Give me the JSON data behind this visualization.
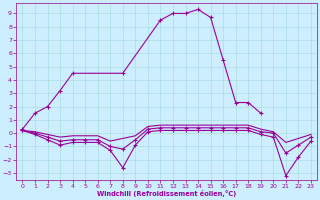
{
  "background_color": "#cceeff",
  "line_color": "#990099",
  "grid_color": "#aadddd",
  "xlabel": "Windchill (Refroidissement éolien,°C)",
  "xlim": [
    -0.5,
    23.5
  ],
  "ylim": [
    -3.5,
    9.8
  ],
  "yticks": [
    -3,
    -2,
    -1,
    0,
    1,
    2,
    3,
    4,
    5,
    6,
    7,
    8,
    9
  ],
  "xticks": [
    0,
    1,
    2,
    3,
    4,
    5,
    6,
    7,
    8,
    9,
    10,
    11,
    12,
    13,
    14,
    15,
    16,
    17,
    18,
    19,
    20,
    21,
    22,
    23
  ],
  "series1_x": [
    0,
    1,
    2,
    3,
    4,
    8,
    11,
    12,
    13,
    14,
    15,
    16,
    17,
    18,
    19
  ],
  "series1_y": [
    0.3,
    1.5,
    2.0,
    3.2,
    4.5,
    4.5,
    8.5,
    9.0,
    9.0,
    9.3,
    8.7,
    5.5,
    2.3,
    2.3,
    1.5
  ],
  "series2_x": [
    0,
    1,
    2,
    3,
    4,
    5,
    6,
    7,
    8,
    9,
    10,
    11,
    12,
    13,
    14,
    15,
    16,
    17,
    18,
    19,
    20,
    21,
    22,
    23
  ],
  "series2_y": [
    0.2,
    -0.1,
    -0.5,
    -0.9,
    -0.7,
    -0.7,
    -0.7,
    -1.3,
    -2.6,
    -0.9,
    0.1,
    0.2,
    0.2,
    0.2,
    0.2,
    0.2,
    0.2,
    0.2,
    0.2,
    -0.1,
    -0.3,
    -3.2,
    -1.8,
    -0.6
  ],
  "series3_x": [
    0,
    1,
    2,
    3,
    4,
    5,
    6,
    7,
    8,
    9,
    10,
    11,
    12,
    13,
    14,
    15,
    16,
    17,
    18,
    19,
    20,
    21,
    22,
    23
  ],
  "series3_y": [
    0.2,
    -0.0,
    -0.3,
    -0.6,
    -0.5,
    -0.5,
    -0.5,
    -1.0,
    -1.2,
    -0.5,
    0.3,
    0.4,
    0.4,
    0.4,
    0.4,
    0.4,
    0.4,
    0.4,
    0.4,
    0.1,
    0.0,
    -1.5,
    -0.9,
    -0.3
  ],
  "series4_x": [
    0,
    1,
    2,
    3,
    4,
    5,
    6,
    7,
    8,
    9,
    10,
    11,
    12,
    13,
    14,
    15,
    16,
    17,
    18,
    19,
    20,
    21,
    22,
    23
  ],
  "series4_y": [
    0.2,
    0.1,
    -0.1,
    -0.3,
    -0.2,
    -0.2,
    -0.2,
    -0.6,
    -0.4,
    -0.2,
    0.5,
    0.6,
    0.6,
    0.6,
    0.6,
    0.6,
    0.6,
    0.6,
    0.6,
    0.3,
    0.1,
    -0.7,
    -0.4,
    -0.1
  ]
}
